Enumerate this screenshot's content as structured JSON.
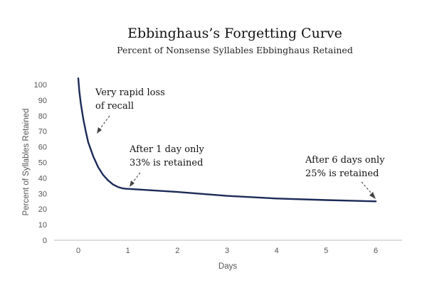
{
  "chart_data": {
    "type": "line",
    "title": "Ebbinghaus’s Forgetting Curve",
    "subtitle": "Percent of Nonsense Syllables Ebbinghaus Retained",
    "xlabel": "Days",
    "ylabel": "Percent of Syllables Retained",
    "xlim": [
      0,
      6
    ],
    "ylim": [
      0,
      100
    ],
    "x_ticks": [
      "0",
      "1",
      "2",
      "3",
      "4",
      "5",
      "6"
    ],
    "y_ticks": [
      "0",
      "10",
      "20",
      "30",
      "40",
      "50",
      "60",
      "70",
      "80",
      "90",
      "100"
    ],
    "grid": false,
    "series": [
      {
        "x": [
          0,
          0.02,
          0.05,
          0.1,
          0.15,
          0.2,
          0.3,
          0.4,
          0.5,
          0.6,
          0.7,
          0.8,
          0.9,
          0.97,
          1,
          2,
          3,
          4,
          5,
          6
        ],
        "y": [
          104,
          96,
          88,
          78,
          70,
          63,
          54,
          47,
          42,
          38.5,
          35.8,
          34.2,
          33.3,
          33,
          33,
          31,
          28.5,
          26.8,
          25.8,
          25
        ],
        "color": "#1b2a57"
      }
    ],
    "annotations": [
      {
        "lines": [
          "Very rapid loss",
          "of recall"
        ],
        "arrow_to": [
          0.38,
          67
        ]
      },
      {
        "lines": [
          "After 1 day only",
          "33% is retained"
        ],
        "arrow_to": [
          1.02,
          33
        ]
      },
      {
        "lines": [
          "After 6 days only",
          "25% is retained"
        ],
        "arrow_to": [
          6,
          25
        ]
      }
    ]
  }
}
